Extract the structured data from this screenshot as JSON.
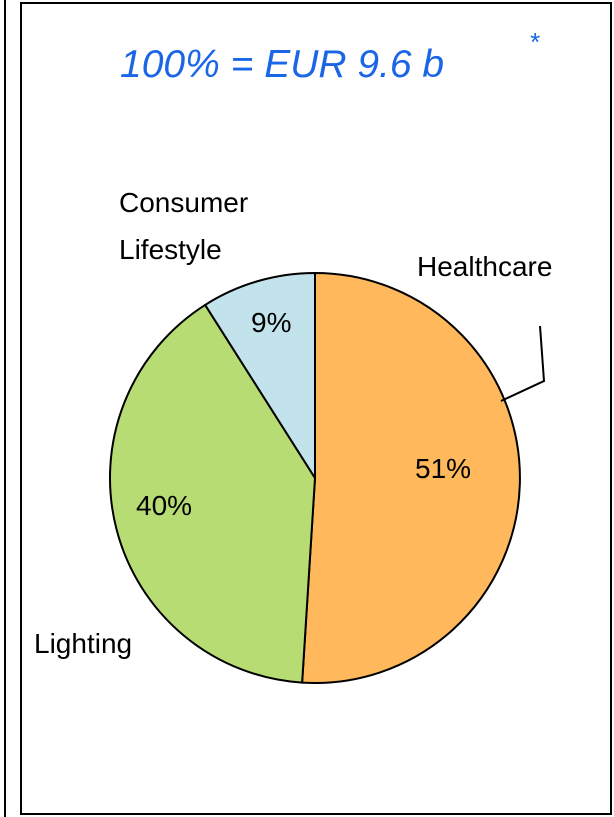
{
  "chart_data": {
    "type": "pie",
    "title": "100% = EUR 9.6 b",
    "title_footnote_mark": "*",
    "title_color": "#1a66e6",
    "slices": [
      {
        "label": "Healthcare",
        "value": 51,
        "value_label": "51%",
        "color": "#ffb85c"
      },
      {
        "label": "Lighting",
        "value": 40,
        "value_label": "40%",
        "color": "#b8dc74"
      },
      {
        "label": "Consumer Lifestyle",
        "label_lines": [
          "Consumer",
          "Lifestyle"
        ],
        "value": 9,
        "value_label": "9%",
        "color": "#c3e3ec"
      }
    ]
  }
}
